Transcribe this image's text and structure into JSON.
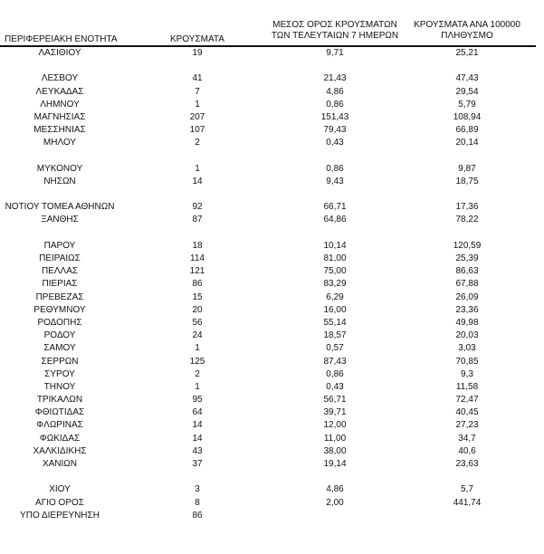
{
  "header": {
    "region": "ΠΕΡΙΦΕΡΕΙΑΚΗ ΕΝΟΤΗΤΑ",
    "cases": "ΚΡΟΥΣΜΑΤΑ",
    "avg_line1": "ΜΕΣΟΣ ΟΡΟΣ ΚΡΟΥΣΜΑΤΩΝ",
    "avg_line2": "ΤΩΝ ΤΕΛΕΥΤΑΙΩΝ 7 ΗΜΕΡΩΝ",
    "per_line1": "ΚΡΟΥΣΜΑΤΑ ΑΝΑ 100000",
    "per_line2": "ΠΛΗΘΥΣΜΟ"
  },
  "rows": [
    [
      "ΛΑΣΙΘΙΟΥ",
      "19",
      "9,71",
      "25,21"
    ],
    [
      "",
      "",
      "",
      ""
    ],
    [
      "ΛΕΣΒΟΥ",
      "41",
      "21,43",
      "47,43"
    ],
    [
      "ΛΕΥΚΑΔΑΣ",
      "7",
      "4,86",
      "29,54"
    ],
    [
      "ΛΗΜΝΟΥ",
      "1",
      "0,86",
      "5,79"
    ],
    [
      "ΜΑΓΝΗΣΙΑΣ",
      "207",
      "151,43",
      "108,94"
    ],
    [
      "ΜΕΣΣΗΝΙΑΣ",
      "107",
      "79,43",
      "66,89"
    ],
    [
      "ΜΗΛΟΥ",
      "2",
      "0,43",
      "20,14"
    ],
    [
      "",
      "",
      "",
      ""
    ],
    [
      "ΜΥΚΟΝΟΥ",
      "1",
      "0,86",
      "9,87"
    ],
    [
      "ΝΗΣΩΝ",
      "14",
      "9,43",
      "18,75"
    ],
    [
      "",
      "",
      "",
      ""
    ],
    [
      "ΝΟΤΙΟΥ ΤΟΜΕΑ ΑΘΗΝΩΝ",
      "92",
      "66,71",
      "17,36"
    ],
    [
      "ΞΑΝΘΗΣ",
      "87",
      "64,86",
      "78,22"
    ],
    [
      "",
      "",
      "",
      ""
    ],
    [
      "ΠΑΡΟΥ",
      "18",
      "10,14",
      "120,59"
    ],
    [
      "ΠΕΙΡΑΙΩΣ",
      "114",
      "81,00",
      "25,39"
    ],
    [
      "ΠΕΛΛΑΣ",
      "121",
      "75,00",
      "86,63"
    ],
    [
      "ΠΙΕΡΙΑΣ",
      "86",
      "83,29",
      "67,88"
    ],
    [
      "ΠΡΕΒΕΖΑΣ",
      "15",
      "6,29",
      "26,09"
    ],
    [
      "ΡΕΘΥΜΝΟΥ",
      "20",
      "16,00",
      "23,36"
    ],
    [
      "ΡΟΔΟΠΗΣ",
      "56",
      "55,14",
      "49,98"
    ],
    [
      "ΡΟΔΟΥ",
      "24",
      "18,57",
      "20,03"
    ],
    [
      "ΣΑΜΟΥ",
      "1",
      "0,57",
      "3,03"
    ],
    [
      "ΣΕΡΡΩΝ",
      "125",
      "87,43",
      "70,85"
    ],
    [
      "ΣΥΡΟΥ",
      "2",
      "0,86",
      "9,3"
    ],
    [
      "ΤΗΝΟΥ",
      "1",
      "0,43",
      "11,58"
    ],
    [
      "ΤΡΙΚΑΛΩΝ",
      "95",
      "56,71",
      "72,47"
    ],
    [
      "ΦΘΙΩΤΙΔΑΣ",
      "64",
      "39,71",
      "40,45"
    ],
    [
      "ΦΛΩΡΙΝΑΣ",
      "14",
      "12,00",
      "27,23"
    ],
    [
      "ΦΩΚΙΔΑΣ",
      "14",
      "11,00",
      "34,7"
    ],
    [
      "ΧΑΛΚΙΔΙΚΗΣ",
      "43",
      "38,00",
      "40,6"
    ],
    [
      "ΧΑΝΙΩΝ",
      "37",
      "19,14",
      "23,63"
    ],
    [
      "",
      "",
      "",
      ""
    ],
    [
      "ΧΙΟΥ",
      "3",
      "4,86",
      "5,7"
    ],
    [
      "ΑΓΙΟ ΟΡΟΣ",
      "8",
      "2,00",
      "441,74"
    ],
    [
      "ΥΠΟ ΔΙΕΡΕΥΝΗΣΗ",
      "86",
      "",
      ""
    ]
  ]
}
